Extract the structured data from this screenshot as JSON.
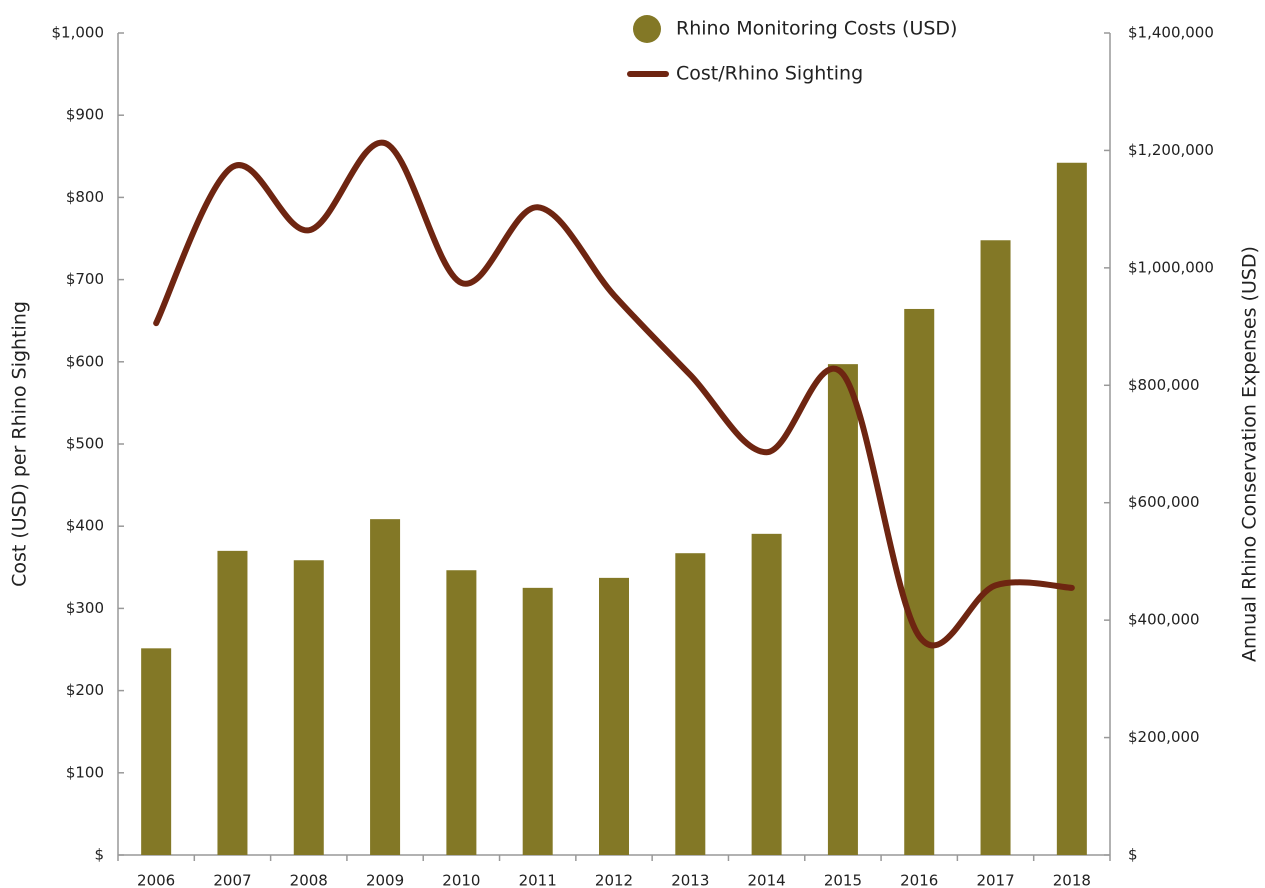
{
  "chart_data": {
    "type": "bar_line",
    "categories": [
      "2006",
      "2007",
      "2008",
      "2009",
      "2010",
      "2011",
      "2012",
      "2013",
      "2014",
      "2015",
      "2016",
      "2017",
      "2018"
    ],
    "series": [
      {
        "name": "Rhino Monitoring Costs (USD)",
        "type": "bar",
        "axis": "y2",
        "color": "#837826",
        "values": [
          352000,
          518000,
          502000,
          572000,
          485000,
          455000,
          472000,
          514000,
          547000,
          836000,
          930000,
          1047000,
          1179000
        ]
      },
      {
        "name": "Cost/Rhino Sighting",
        "type": "line",
        "axis": "y",
        "color": "#6e2511",
        "values": [
          647,
          837,
          760,
          866,
          696,
          788,
          681,
          584,
          490,
          585,
          266,
          328,
          325
        ]
      }
    ],
    "ylabel": "Cost (USD) per Rhino Sighting",
    "y2label": "Annual Rhino Conservation Expenses (USD)",
    "ylim": [
      0,
      1000
    ],
    "yticks": [
      {
        "value": 0,
        "label": "$"
      },
      {
        "value": 100,
        "label": "$100"
      },
      {
        "value": 200,
        "label": "$200"
      },
      {
        "value": 300,
        "label": "$300"
      },
      {
        "value": 400,
        "label": "$400"
      },
      {
        "value": 500,
        "label": "$500"
      },
      {
        "value": 600,
        "label": "$600"
      },
      {
        "value": 700,
        "label": "$700"
      },
      {
        "value": 800,
        "label": "$800"
      },
      {
        "value": 900,
        "label": "$900"
      },
      {
        "value": 1000,
        "label": "$1,000"
      }
    ],
    "y2lim": [
      0,
      1400000
    ],
    "y2ticks": [
      {
        "value": 0,
        "label": "$"
      },
      {
        "value": 200000,
        "label": "$200,000"
      },
      {
        "value": 400000,
        "label": "$400,000"
      },
      {
        "value": 600000,
        "label": "$600,000"
      },
      {
        "value": 800000,
        "label": "$800,000"
      },
      {
        "value": 1000000,
        "label": "$1,000,000"
      },
      {
        "value": 1200000,
        "label": "$1,200,000"
      },
      {
        "value": 1400000,
        "label": "$1,400,000"
      }
    ]
  }
}
